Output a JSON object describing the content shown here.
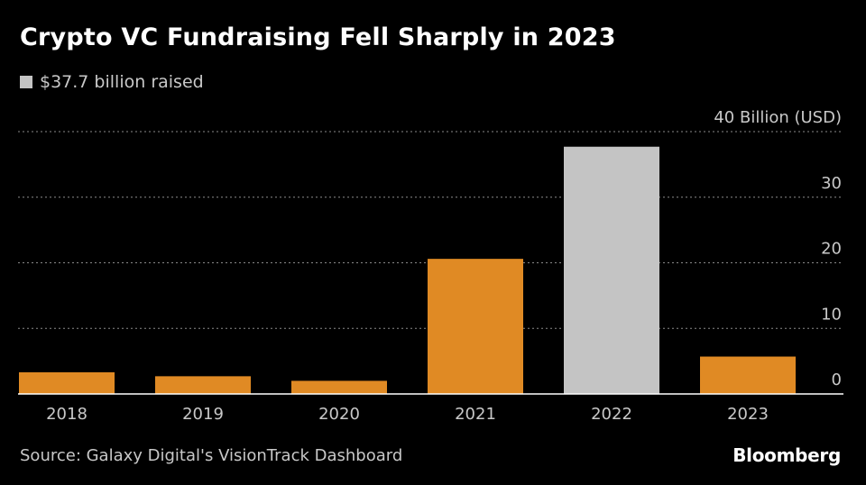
{
  "title": "Crypto VC Fundraising Fell Sharply in 2023",
  "legend": {
    "label": "$37.7 billion raised",
    "color": "#c4c4c4"
  },
  "source": "Source: Galaxy Digital's VisionTrack Dashboard",
  "brand": "Bloomberg",
  "chart_data": {
    "type": "bar",
    "categories": [
      "2018",
      "2019",
      "2020",
      "2021",
      "2022",
      "2023"
    ],
    "values": [
      3.3,
      2.7,
      2.0,
      20.6,
      37.7,
      5.7
    ],
    "highlight_index": 4,
    "colors": {
      "bar": "#e08a24",
      "highlight": "#c4c4c4",
      "grid": "#8a8a8a",
      "axis": "#ffffff",
      "tick": "#c8c8c8"
    },
    "ylim": [
      0,
      40
    ],
    "yticks": [
      0,
      10,
      20,
      30,
      40
    ],
    "ytick_labels": [
      "0",
      "10",
      "20",
      "30",
      "40 Billion (USD)"
    ],
    "grid": true,
    "ylabel": "",
    "xlabel": ""
  }
}
